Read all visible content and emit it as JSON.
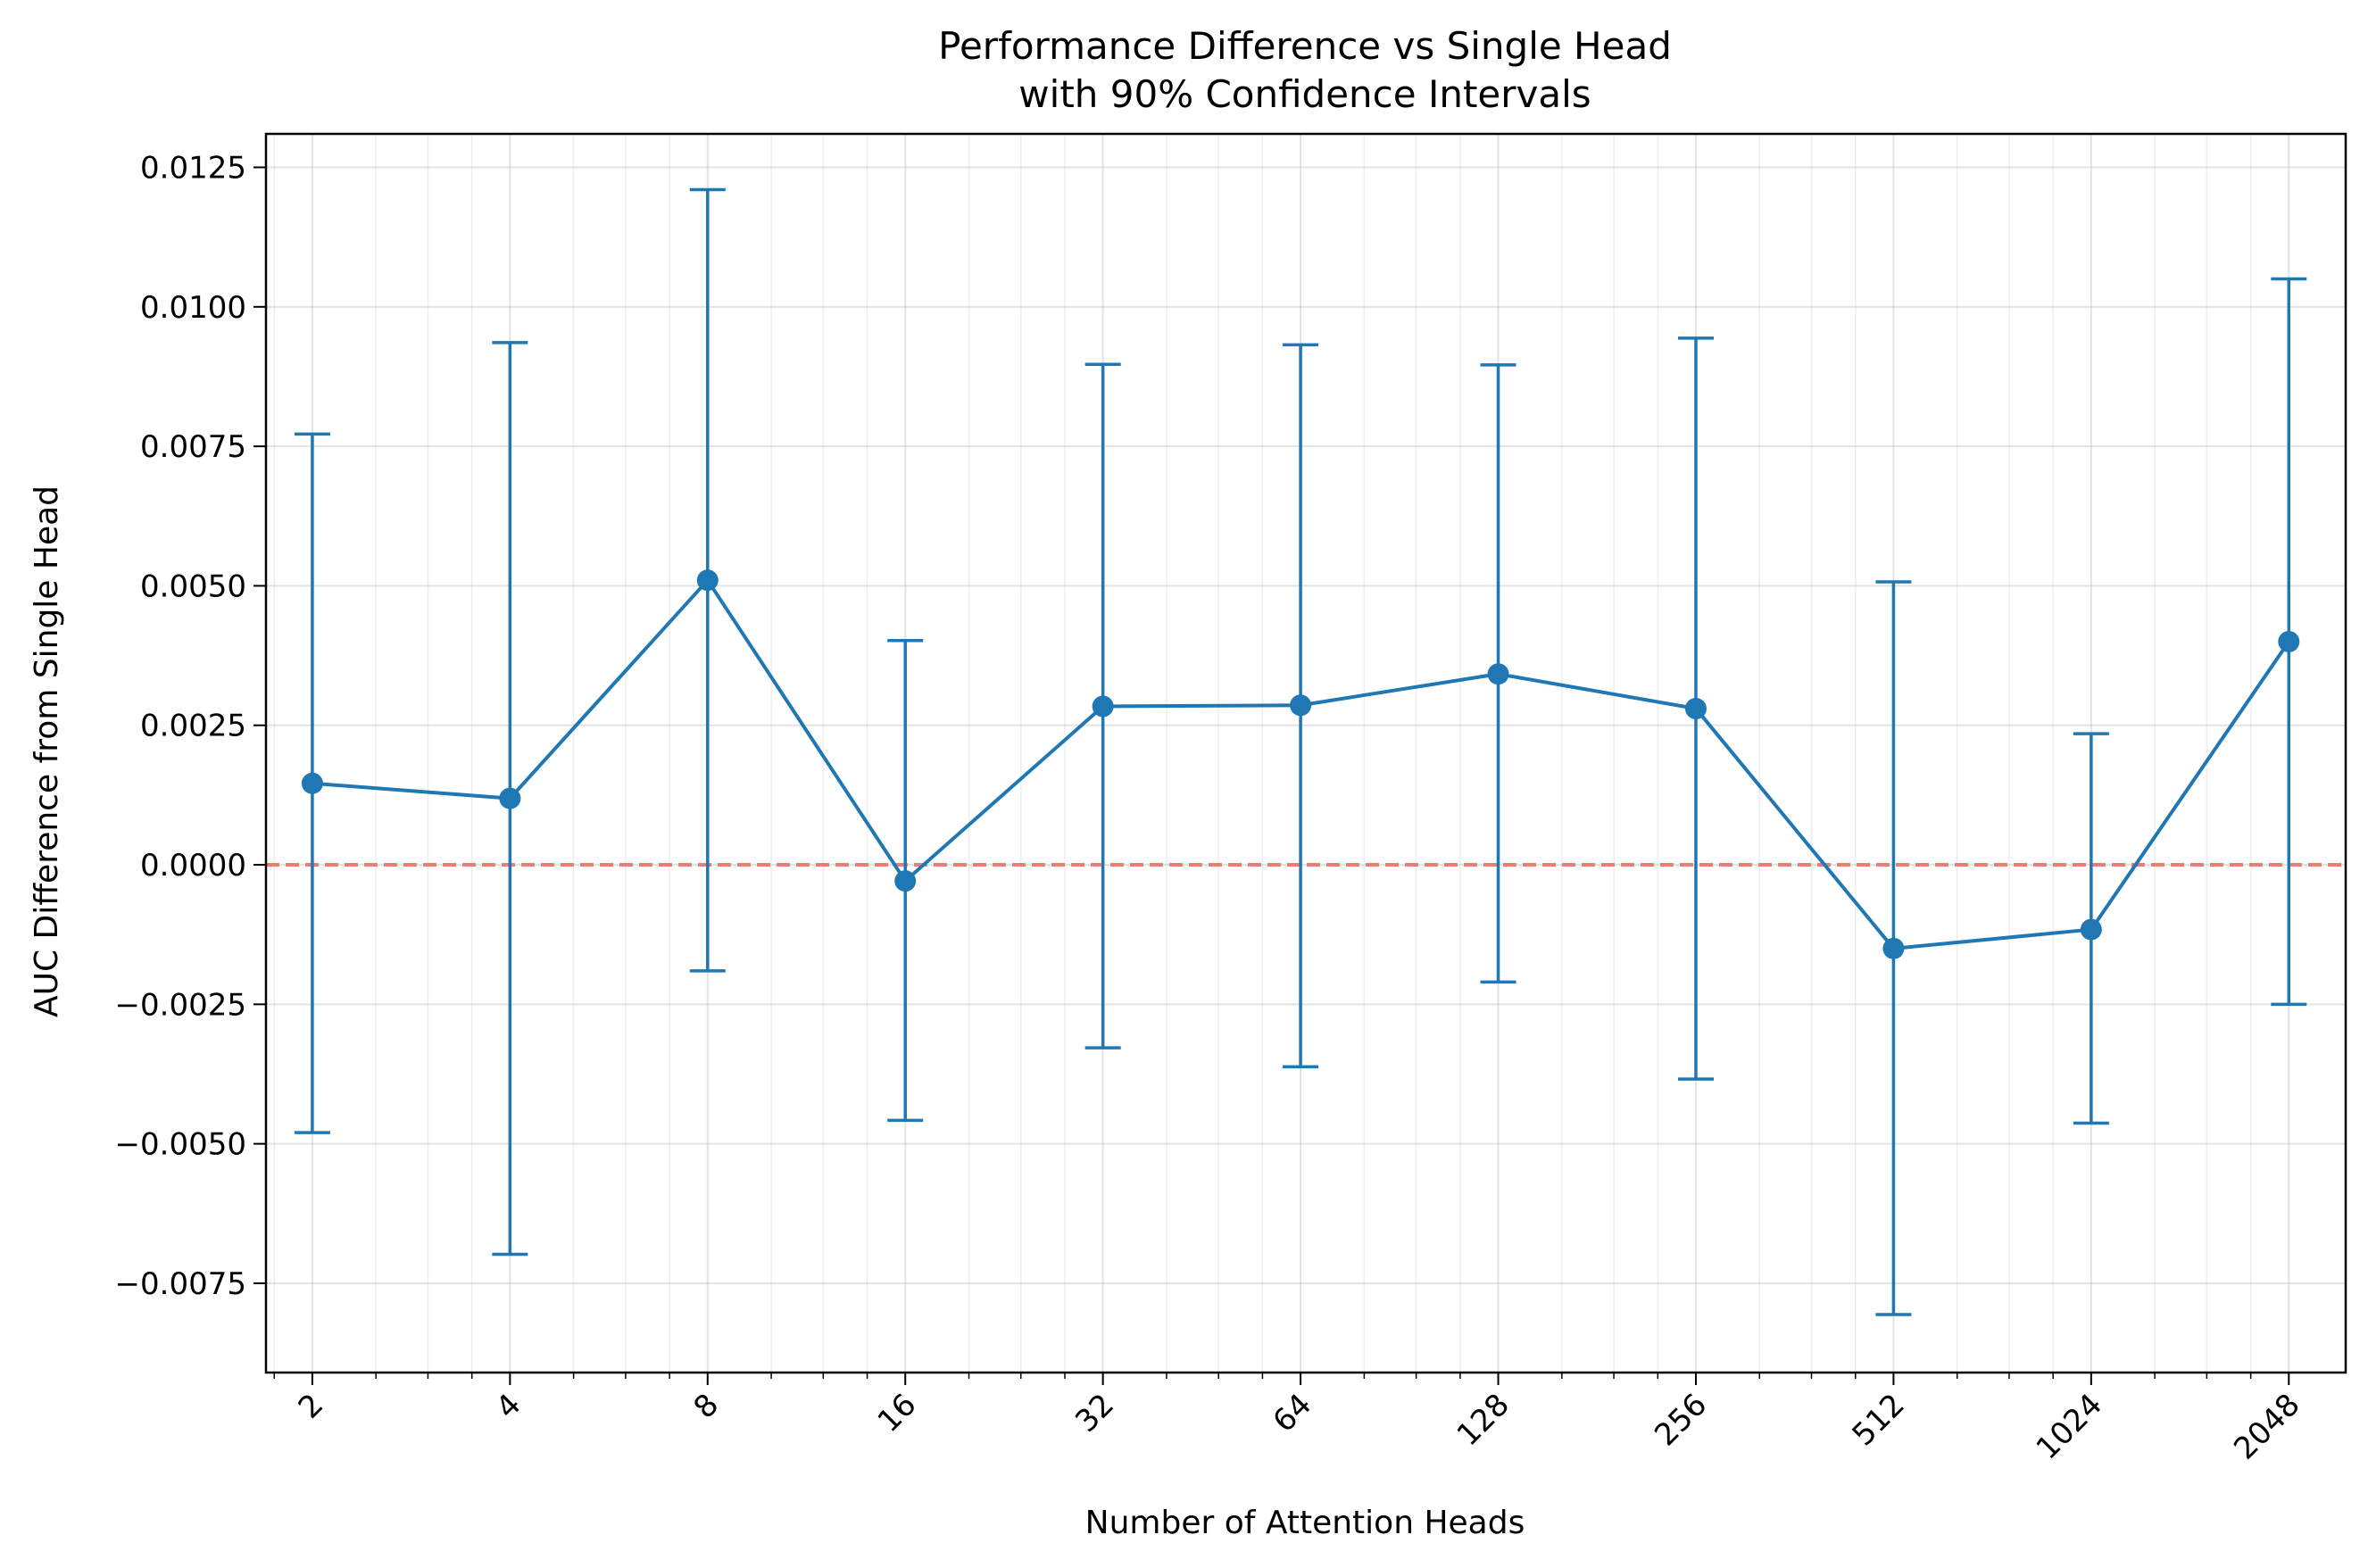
{
  "chart_data": {
    "type": "line",
    "title": "Performance Difference vs Single Head",
    "subtitle": "with 90% Confidence Intervals",
    "xlabel": "Number of Attention Heads",
    "ylabel": "AUC Difference from Single Head",
    "x_scale": "log2",
    "xlim": [
      1.7,
      2500
    ],
    "ylim": [
      -0.0091,
      0.0131
    ],
    "x_tick_labels": [
      "2",
      "4",
      "8",
      "16",
      "32",
      "64",
      "128",
      "256",
      "512",
      "1024",
      "2048"
    ],
    "y_tick_labels": [
      "0.0125",
      "0.0100",
      "0.0075",
      "0.0050",
      "0.0025",
      "0.0000",
      "−0.0025",
      "−0.0050",
      "−0.0075"
    ],
    "y_ticks": [
      0.0125,
      0.01,
      0.0075,
      0.005,
      0.0025,
      0.0,
      -0.0025,
      -0.005,
      -0.0075
    ],
    "grid": true,
    "reference_line": {
      "y": 0.0,
      "style": "dashed",
      "color": "#f07b72"
    },
    "series": [
      {
        "color": "#1f77b4",
        "x": [
          2,
          4,
          8,
          16,
          32,
          64,
          128,
          256,
          512,
          1024,
          2048
        ],
        "y": [
          0.00146,
          0.00119,
          0.0051,
          -0.00029,
          0.00284,
          0.00286,
          0.00342,
          0.0028,
          -0.0015,
          -0.00116,
          0.004
        ],
        "ci_low": [
          -0.0048,
          -0.00698,
          -0.0019,
          -0.00458,
          -0.00328,
          -0.00362,
          -0.0021,
          -0.00384,
          -0.00806,
          -0.00463,
          -0.0025
        ],
        "ci_high": [
          0.00772,
          0.00936,
          0.0121,
          0.00402,
          0.00897,
          0.00932,
          0.00896,
          0.00944,
          0.00507,
          0.00235,
          0.0105
        ]
      }
    ]
  }
}
